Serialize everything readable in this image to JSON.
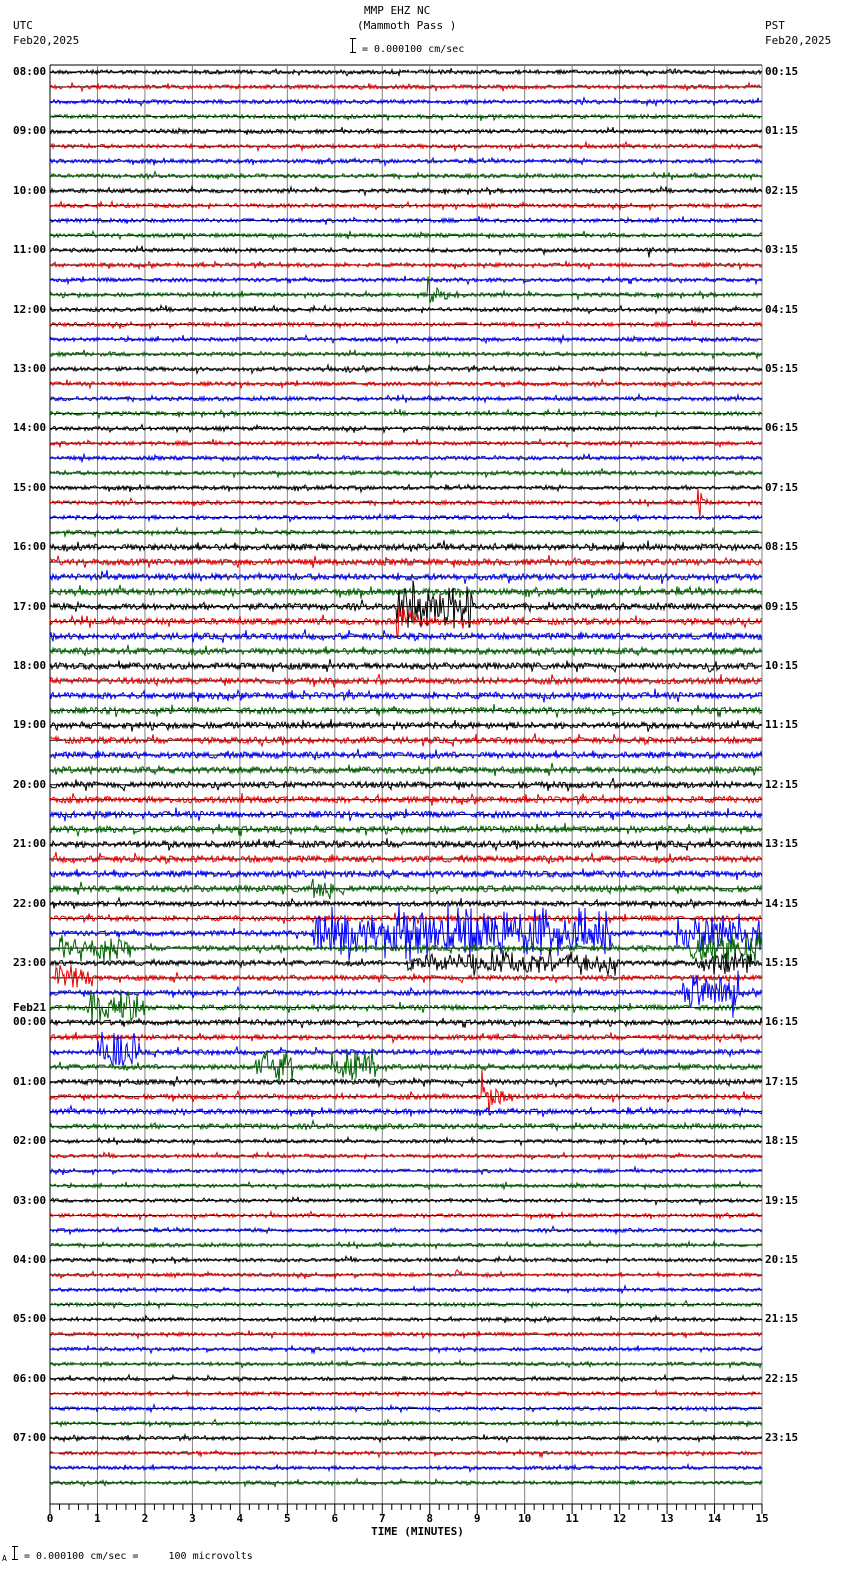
{
  "header": {
    "station": "MMP EHZ NC",
    "location": "(Mammoth Pass )",
    "left_tz": "UTC",
    "left_date": "Feb20,2025",
    "right_tz": "PST",
    "right_date": "Feb20,2025",
    "scale_text": "= 0.000100 cm/sec"
  },
  "footer": {
    "scale_prefix": "A",
    "scale_text": "= 0.000100 cm/sec =     100 microvolts"
  },
  "chart_data": {
    "type": "line",
    "title": "MMP EHZ NC (Mammoth Pass )",
    "subtitle": "Helicorder seismogram, 15 minutes per line, 96 lines (24 hours)",
    "xlabel": "TIME (MINUTES)",
    "ylabel": "",
    "xlim": [
      0,
      15
    ],
    "x_ticks": [
      "0",
      "1",
      "2",
      "3",
      "4",
      "5",
      "6",
      "7",
      "8",
      "9",
      "10",
      "11",
      "12",
      "13",
      "14",
      "15"
    ],
    "grid": true,
    "trace_colors": [
      "#000000",
      "#e80000",
      "#0000ff",
      "#006400"
    ],
    "left_labels": [
      {
        "line": 0,
        "text": "08:00"
      },
      {
        "line": 4,
        "text": "09:00"
      },
      {
        "line": 8,
        "text": "10:00"
      },
      {
        "line": 12,
        "text": "11:00"
      },
      {
        "line": 16,
        "text": "12:00"
      },
      {
        "line": 20,
        "text": "13:00"
      },
      {
        "line": 24,
        "text": "14:00"
      },
      {
        "line": 28,
        "text": "15:00"
      },
      {
        "line": 32,
        "text": "16:00"
      },
      {
        "line": 36,
        "text": "17:00"
      },
      {
        "line": 40,
        "text": "18:00"
      },
      {
        "line": 44,
        "text": "19:00"
      },
      {
        "line": 48,
        "text": "20:00"
      },
      {
        "line": 52,
        "text": "21:00"
      },
      {
        "line": 56,
        "text": "22:00"
      },
      {
        "line": 60,
        "text": "23:00"
      },
      {
        "line": 64,
        "text": "00:00",
        "date": "Feb21"
      },
      {
        "line": 68,
        "text": "01:00"
      },
      {
        "line": 72,
        "text": "02:00"
      },
      {
        "line": 76,
        "text": "03:00"
      },
      {
        "line": 80,
        "text": "04:00"
      },
      {
        "line": 84,
        "text": "05:00"
      },
      {
        "line": 88,
        "text": "06:00"
      },
      {
        "line": 92,
        "text": "07:00"
      }
    ],
    "right_labels": [
      {
        "line": 0,
        "text": "00:15"
      },
      {
        "line": 4,
        "text": "01:15"
      },
      {
        "line": 8,
        "text": "02:15"
      },
      {
        "line": 12,
        "text": "03:15"
      },
      {
        "line": 16,
        "text": "04:15"
      },
      {
        "line": 20,
        "text": "05:15"
      },
      {
        "line": 24,
        "text": "06:15"
      },
      {
        "line": 28,
        "text": "07:15"
      },
      {
        "line": 32,
        "text": "08:15"
      },
      {
        "line": 36,
        "text": "09:15"
      },
      {
        "line": 40,
        "text": "10:15"
      },
      {
        "line": 44,
        "text": "11:15"
      },
      {
        "line": 48,
        "text": "12:15"
      },
      {
        "line": 52,
        "text": "13:15"
      },
      {
        "line": 56,
        "text": "14:15"
      },
      {
        "line": 60,
        "text": "15:15"
      },
      {
        "line": 64,
        "text": "16:15"
      },
      {
        "line": 68,
        "text": "17:15"
      },
      {
        "line": 72,
        "text": "18:15"
      },
      {
        "line": 76,
        "text": "19:15"
      },
      {
        "line": 80,
        "text": "20:15"
      },
      {
        "line": 84,
        "text": "21:15"
      },
      {
        "line": 88,
        "text": "22:15"
      },
      {
        "line": 92,
        "text": "23:15"
      }
    ],
    "noise_levels": [
      {
        "from": 0,
        "to": 32,
        "amp": 2.0
      },
      {
        "from": 32,
        "to": 56,
        "amp": 3.2
      },
      {
        "from": 56,
        "to": 72,
        "amp": 2.6
      },
      {
        "from": 72,
        "to": 96,
        "amp": 1.8
      }
    ],
    "events": [
      {
        "line": 1,
        "start_min": 6.7,
        "duration_min": 0.15,
        "amp": 4,
        "type": "spike"
      },
      {
        "line": 12,
        "start_min": 12.6,
        "duration_min": 0.25,
        "amp": 12,
        "type": "quake"
      },
      {
        "line": 15,
        "start_min": 7.95,
        "duration_min": 1.0,
        "amp": 22,
        "type": "quake"
      },
      {
        "line": 20,
        "start_min": 6.2,
        "duration_min": 0.2,
        "amp": 4,
        "type": "spike"
      },
      {
        "line": 21,
        "start_min": 10.5,
        "duration_min": 0.15,
        "amp": 4,
        "type": "spike"
      },
      {
        "line": 29,
        "start_min": 13.65,
        "duration_min": 0.35,
        "amp": 22,
        "type": "quake"
      },
      {
        "line": 32,
        "start_min": 8.15,
        "duration_min": 0.1,
        "amp": 8,
        "type": "spike"
      },
      {
        "line": 36,
        "start_min": 7.3,
        "duration_min": 1.6,
        "amp": 28,
        "type": "swarm"
      },
      {
        "line": 37,
        "start_min": 7.3,
        "duration_min": 1.5,
        "amp": 22,
        "type": "quake"
      },
      {
        "line": 40,
        "start_min": 13.9,
        "duration_min": 0.5,
        "amp": 10,
        "type": "quake"
      },
      {
        "line": 47,
        "start_min": 7.8,
        "duration_min": 0.35,
        "amp": 10,
        "type": "quake"
      },
      {
        "line": 55,
        "start_min": 5.5,
        "duration_min": 0.5,
        "amp": 12,
        "type": "swarm"
      },
      {
        "line": 58,
        "start_min": 5.5,
        "duration_min": 6.3,
        "amp": 30,
        "type": "swarm"
      },
      {
        "line": 58,
        "start_min": 13.2,
        "duration_min": 1.8,
        "amp": 20,
        "type": "swarm"
      },
      {
        "line": 59,
        "start_min": 13.5,
        "duration_min": 1.5,
        "amp": 20,
        "type": "swarm"
      },
      {
        "line": 59,
        "start_min": 0.2,
        "duration_min": 1.5,
        "amp": 14,
        "type": "swarm"
      },
      {
        "line": 60,
        "start_min": 7.5,
        "duration_min": 4.5,
        "amp": 14,
        "type": "swarm"
      },
      {
        "line": 60,
        "start_min": 13.6,
        "duration_min": 1.2,
        "amp": 14,
        "type": "swarm"
      },
      {
        "line": 61,
        "start_min": 0.1,
        "duration_min": 0.8,
        "amp": 14,
        "type": "swarm"
      },
      {
        "line": 62,
        "start_min": 13.3,
        "duration_min": 1.2,
        "amp": 24,
        "type": "swarm"
      },
      {
        "line": 63,
        "start_min": 0.8,
        "duration_min": 1.2,
        "amp": 22,
        "type": "swarm"
      },
      {
        "line": 66,
        "start_min": 1.0,
        "duration_min": 0.9,
        "amp": 24,
        "type": "swarm"
      },
      {
        "line": 67,
        "start_min": 4.3,
        "duration_min": 0.8,
        "amp": 20,
        "type": "swarm"
      },
      {
        "line": 67,
        "start_min": 5.9,
        "duration_min": 1.0,
        "amp": 22,
        "type": "swarm"
      },
      {
        "line": 69,
        "start_min": 9.1,
        "duration_min": 1.1,
        "amp": 30,
        "type": "quake"
      },
      {
        "line": 72,
        "start_min": 1.75,
        "duration_min": 0.1,
        "amp": 5,
        "type": "spike"
      },
      {
        "line": 81,
        "start_min": 8.55,
        "duration_min": 0.3,
        "amp": 8,
        "type": "quake"
      },
      {
        "line": 92,
        "start_min": 8.2,
        "duration_min": 0.3,
        "amp": 4,
        "type": "quake"
      },
      {
        "line": 92,
        "start_min": 14.5,
        "duration_min": 0.3,
        "amp": 4,
        "type": "quake"
      }
    ]
  }
}
